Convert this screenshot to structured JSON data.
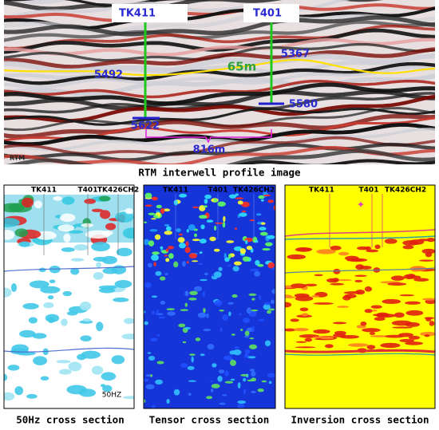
{
  "top": {
    "wells": [
      "TK411",
      "T401"
    ],
    "depths": [
      "5367",
      "5492",
      "5580",
      "5622"
    ],
    "thickness": "65m",
    "distance": "816m",
    "method": "RTM"
  },
  "top_caption": "RTM interwell profile image",
  "panels": [
    {
      "wells": [
        "TK411",
        "T401",
        "TK426CH2"
      ],
      "tag": "50HZ",
      "caption": "50Hz cross section"
    },
    {
      "wells": [
        "TK411",
        "T401",
        "TK426CH2"
      ],
      "caption": "Tensor cross section"
    },
    {
      "wells": [
        "TK411",
        "T401",
        "TK426CH2"
      ],
      "caption": "Inversion cross section"
    }
  ]
}
